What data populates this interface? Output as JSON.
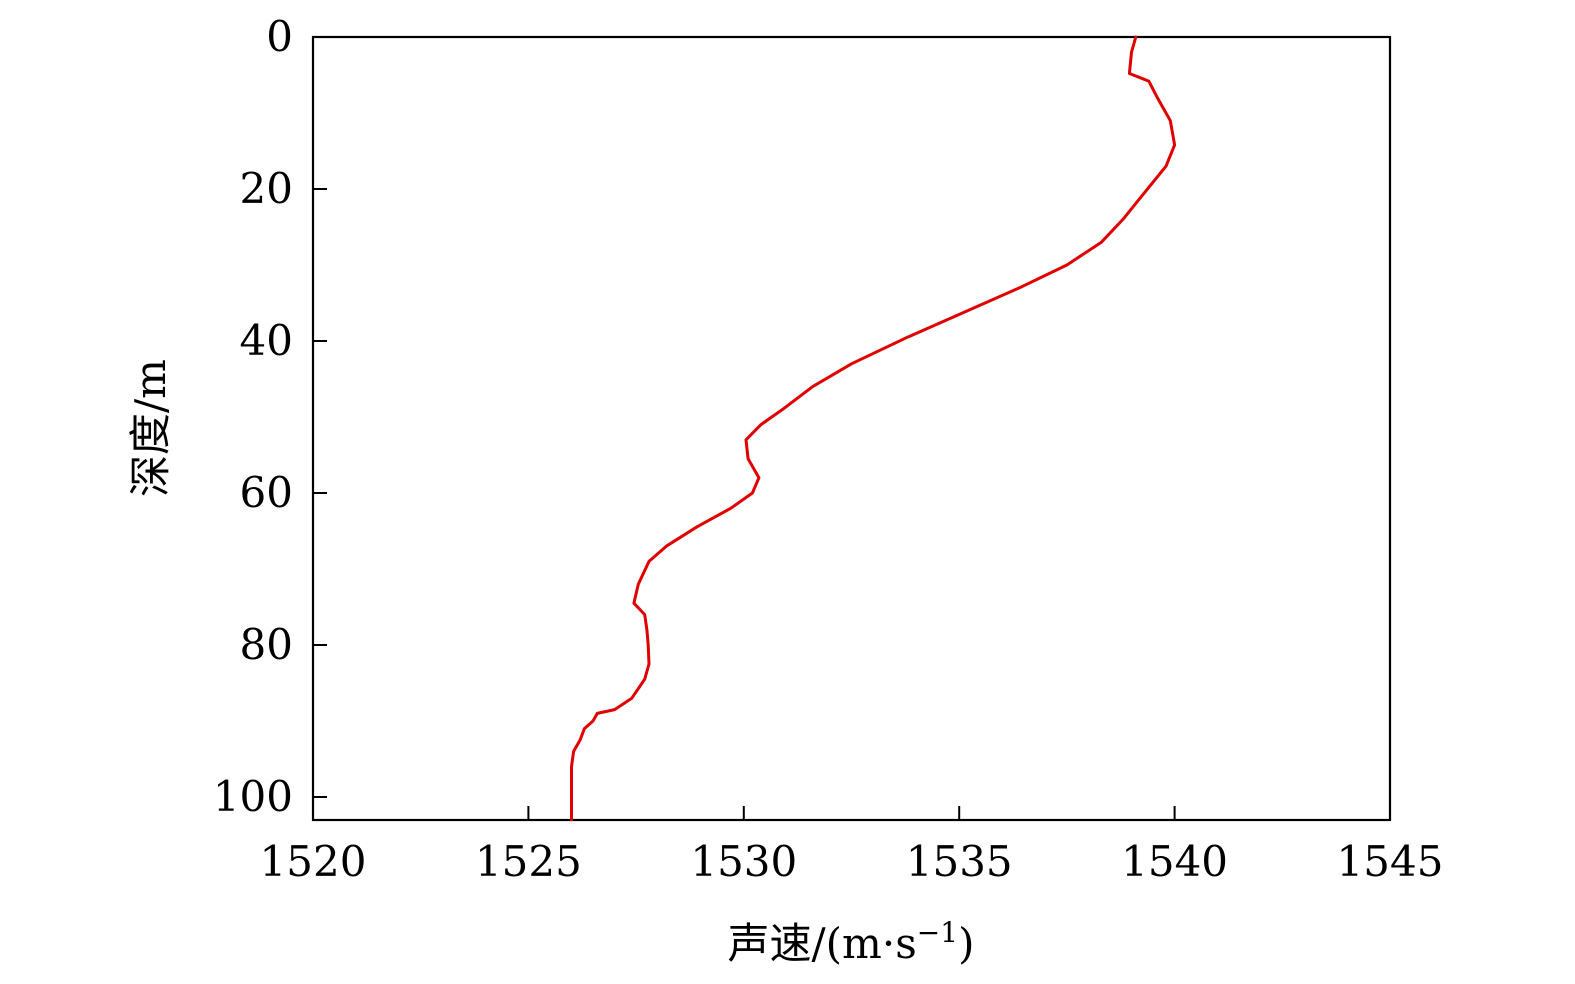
{
  "chart_data": {
    "type": "line",
    "title": "",
    "xlabel": "声速/(m·s",
    "xlabel_sup": "−1",
    "xlabel_close": ")",
    "ylabel": "深度/m",
    "xlim": [
      1520,
      1545
    ],
    "ylim": [
      0,
      103
    ],
    "y_inverted": true,
    "grid": false,
    "legend": "none",
    "x_ticks": [
      1520,
      1525,
      1530,
      1535,
      1540,
      1545
    ],
    "y_ticks": [
      0,
      20,
      40,
      60,
      80,
      100
    ],
    "series": [
      {
        "color": "#e00000",
        "points": [
          [
            1539.1,
            0
          ],
          [
            1539.0,
            2
          ],
          [
            1538.95,
            4.8
          ],
          [
            1539.4,
            5.8
          ],
          [
            1539.6,
            8
          ],
          [
            1539.9,
            11
          ],
          [
            1540.0,
            14.2
          ],
          [
            1539.8,
            17
          ],
          [
            1539.3,
            20.5
          ],
          [
            1538.8,
            24
          ],
          [
            1538.3,
            27
          ],
          [
            1537.5,
            30
          ],
          [
            1536.4,
            33
          ],
          [
            1535.2,
            36
          ],
          [
            1533.8,
            39.5
          ],
          [
            1532.5,
            43
          ],
          [
            1531.6,
            46
          ],
          [
            1530.9,
            49
          ],
          [
            1530.4,
            51
          ],
          [
            1530.05,
            53
          ],
          [
            1530.1,
            55.5
          ],
          [
            1530.35,
            58
          ],
          [
            1530.2,
            60
          ],
          [
            1529.7,
            62
          ],
          [
            1528.9,
            64.5
          ],
          [
            1528.2,
            67
          ],
          [
            1527.8,
            69
          ],
          [
            1527.55,
            72
          ],
          [
            1527.45,
            74.5
          ],
          [
            1527.7,
            76
          ],
          [
            1527.75,
            78
          ],
          [
            1527.78,
            80
          ],
          [
            1527.8,
            82.5
          ],
          [
            1527.7,
            84.5
          ],
          [
            1527.4,
            87
          ],
          [
            1527.0,
            88.5
          ],
          [
            1526.6,
            89
          ],
          [
            1526.5,
            90
          ],
          [
            1526.3,
            91
          ],
          [
            1526.2,
            92.5
          ],
          [
            1526.05,
            94
          ],
          [
            1526.0,
            96
          ],
          [
            1526.0,
            100
          ],
          [
            1526.0,
            103
          ]
        ]
      }
    ]
  }
}
